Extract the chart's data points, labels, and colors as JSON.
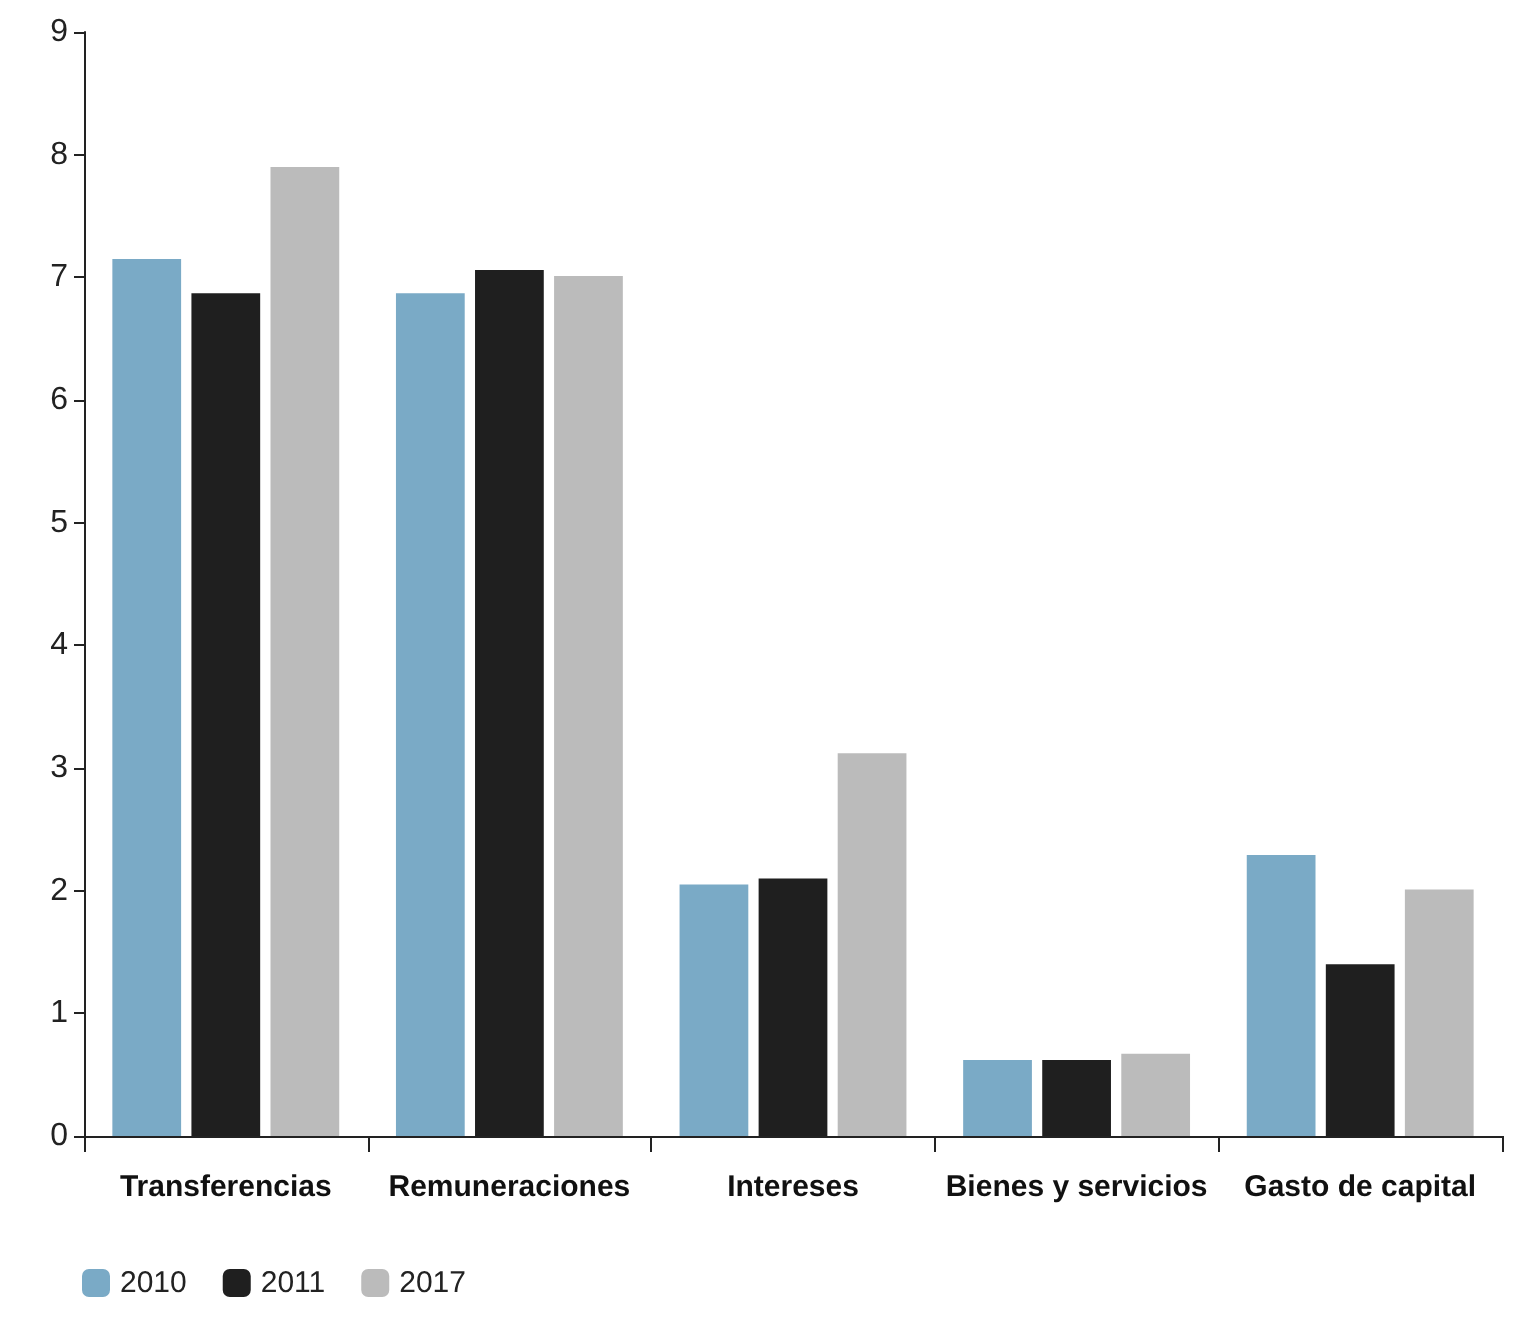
{
  "chart_data": {
    "type": "bar",
    "categories": [
      "Transferencias",
      "Remuneraciones",
      "Intereses",
      "Bienes y servicios",
      "Gasto de capital"
    ],
    "series": [
      {
        "name": "2010",
        "color": "#7aaac6",
        "values": [
          7.15,
          6.87,
          2.05,
          0.62,
          2.29
        ]
      },
      {
        "name": "2011",
        "color": "#1f1f1f",
        "values": [
          6.87,
          7.06,
          2.1,
          0.62,
          1.4
        ]
      },
      {
        "name": "2017",
        "color": "#bbbbbb",
        "values": [
          7.9,
          7.01,
          3.12,
          0.67,
          2.01
        ]
      }
    ],
    "ylim": [
      0,
      9
    ],
    "yticks": [
      0,
      1,
      2,
      3,
      4,
      5,
      6,
      7,
      8,
      9
    ],
    "grid": false,
    "legend": "bottom left"
  }
}
